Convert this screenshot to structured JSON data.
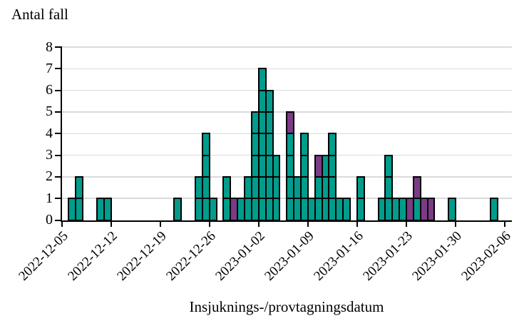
{
  "chart_data": {
    "type": "bar",
    "stacked": true,
    "title": "Antal fall",
    "xlabel": "Insjuknings-/provtagningsdatum",
    "ylabel": "",
    "ylim": [
      0,
      8
    ],
    "y_ticks": [
      0,
      1,
      2,
      3,
      4,
      5,
      6,
      7,
      8
    ],
    "grid": "horizontal",
    "unit": "1 cell = 1 case",
    "x_axis_start": "2022-12-05",
    "x_axis_days": 64,
    "x_tick_labels": [
      "2022-12-05",
      "2022-12-12",
      "2022-12-19",
      "2022-12-26",
      "2023-01-02",
      "2023-01-09",
      "2023-01-16",
      "2023-01-23",
      "2023-01-30",
      "2023-02-06"
    ],
    "colors": {
      "teal": "#009C8C",
      "purple": "#7B3B87",
      "gridline": "#DBDBDB",
      "axis": "#000000"
    },
    "series": [
      {
        "name": "teal",
        "color_key": "teal"
      },
      {
        "name": "purple",
        "color_key": "purple"
      }
    ],
    "days": [
      {
        "date": "2022-12-06",
        "teal": 1,
        "purple": 0
      },
      {
        "date": "2022-12-07",
        "teal": 2,
        "purple": 0
      },
      {
        "date": "2022-12-10",
        "teal": 1,
        "purple": 0
      },
      {
        "date": "2022-12-11",
        "teal": 1,
        "purple": 0
      },
      {
        "date": "2022-12-21",
        "teal": 1,
        "purple": 0
      },
      {
        "date": "2022-12-24",
        "teal": 2,
        "purple": 0
      },
      {
        "date": "2022-12-25",
        "teal": 4,
        "purple": 0
      },
      {
        "date": "2022-12-26",
        "teal": 1,
        "purple": 0
      },
      {
        "date": "2022-12-28",
        "teal": 2,
        "purple": 0
      },
      {
        "date": "2022-12-29",
        "teal": 0,
        "purple": 1
      },
      {
        "date": "2022-12-30",
        "teal": 1,
        "purple": 0
      },
      {
        "date": "2022-12-31",
        "teal": 2,
        "purple": 0
      },
      {
        "date": "2023-01-01",
        "teal": 5,
        "purple": 0
      },
      {
        "date": "2023-01-02",
        "teal": 7,
        "purple": 0
      },
      {
        "date": "2023-01-03",
        "teal": 6,
        "purple": 0
      },
      {
        "date": "2023-01-04",
        "teal": 3,
        "purple": 0
      },
      {
        "date": "2023-01-06",
        "teal": 4,
        "purple": 1
      },
      {
        "date": "2023-01-07",
        "teal": 2,
        "purple": 0
      },
      {
        "date": "2023-01-08",
        "teal": 4,
        "purple": 0
      },
      {
        "date": "2023-01-09",
        "teal": 1,
        "purple": 0
      },
      {
        "date": "2023-01-10",
        "teal": 2,
        "purple": 1
      },
      {
        "date": "2023-01-11",
        "teal": 3,
        "purple": 0
      },
      {
        "date": "2023-01-12",
        "teal": 4,
        "purple": 0
      },
      {
        "date": "2023-01-13",
        "teal": 1,
        "purple": 0
      },
      {
        "date": "2023-01-14",
        "teal": 1,
        "purple": 0
      },
      {
        "date": "2023-01-16",
        "teal": 2,
        "purple": 0
      },
      {
        "date": "2023-01-19",
        "teal": 1,
        "purple": 0
      },
      {
        "date": "2023-01-20",
        "teal": 3,
        "purple": 0
      },
      {
        "date": "2023-01-21",
        "teal": 1,
        "purple": 0
      },
      {
        "date": "2023-01-22",
        "teal": 1,
        "purple": 0
      },
      {
        "date": "2023-01-23",
        "teal": 0,
        "purple": 1
      },
      {
        "date": "2023-01-24",
        "teal": 1,
        "purple": 1
      },
      {
        "date": "2023-01-25",
        "teal": 0,
        "purple": 1
      },
      {
        "date": "2023-01-26",
        "teal": 0,
        "purple": 1
      },
      {
        "date": "2023-01-29",
        "teal": 1,
        "purple": 0
      },
      {
        "date": "2023-02-04",
        "teal": 1,
        "purple": 0
      }
    ]
  }
}
